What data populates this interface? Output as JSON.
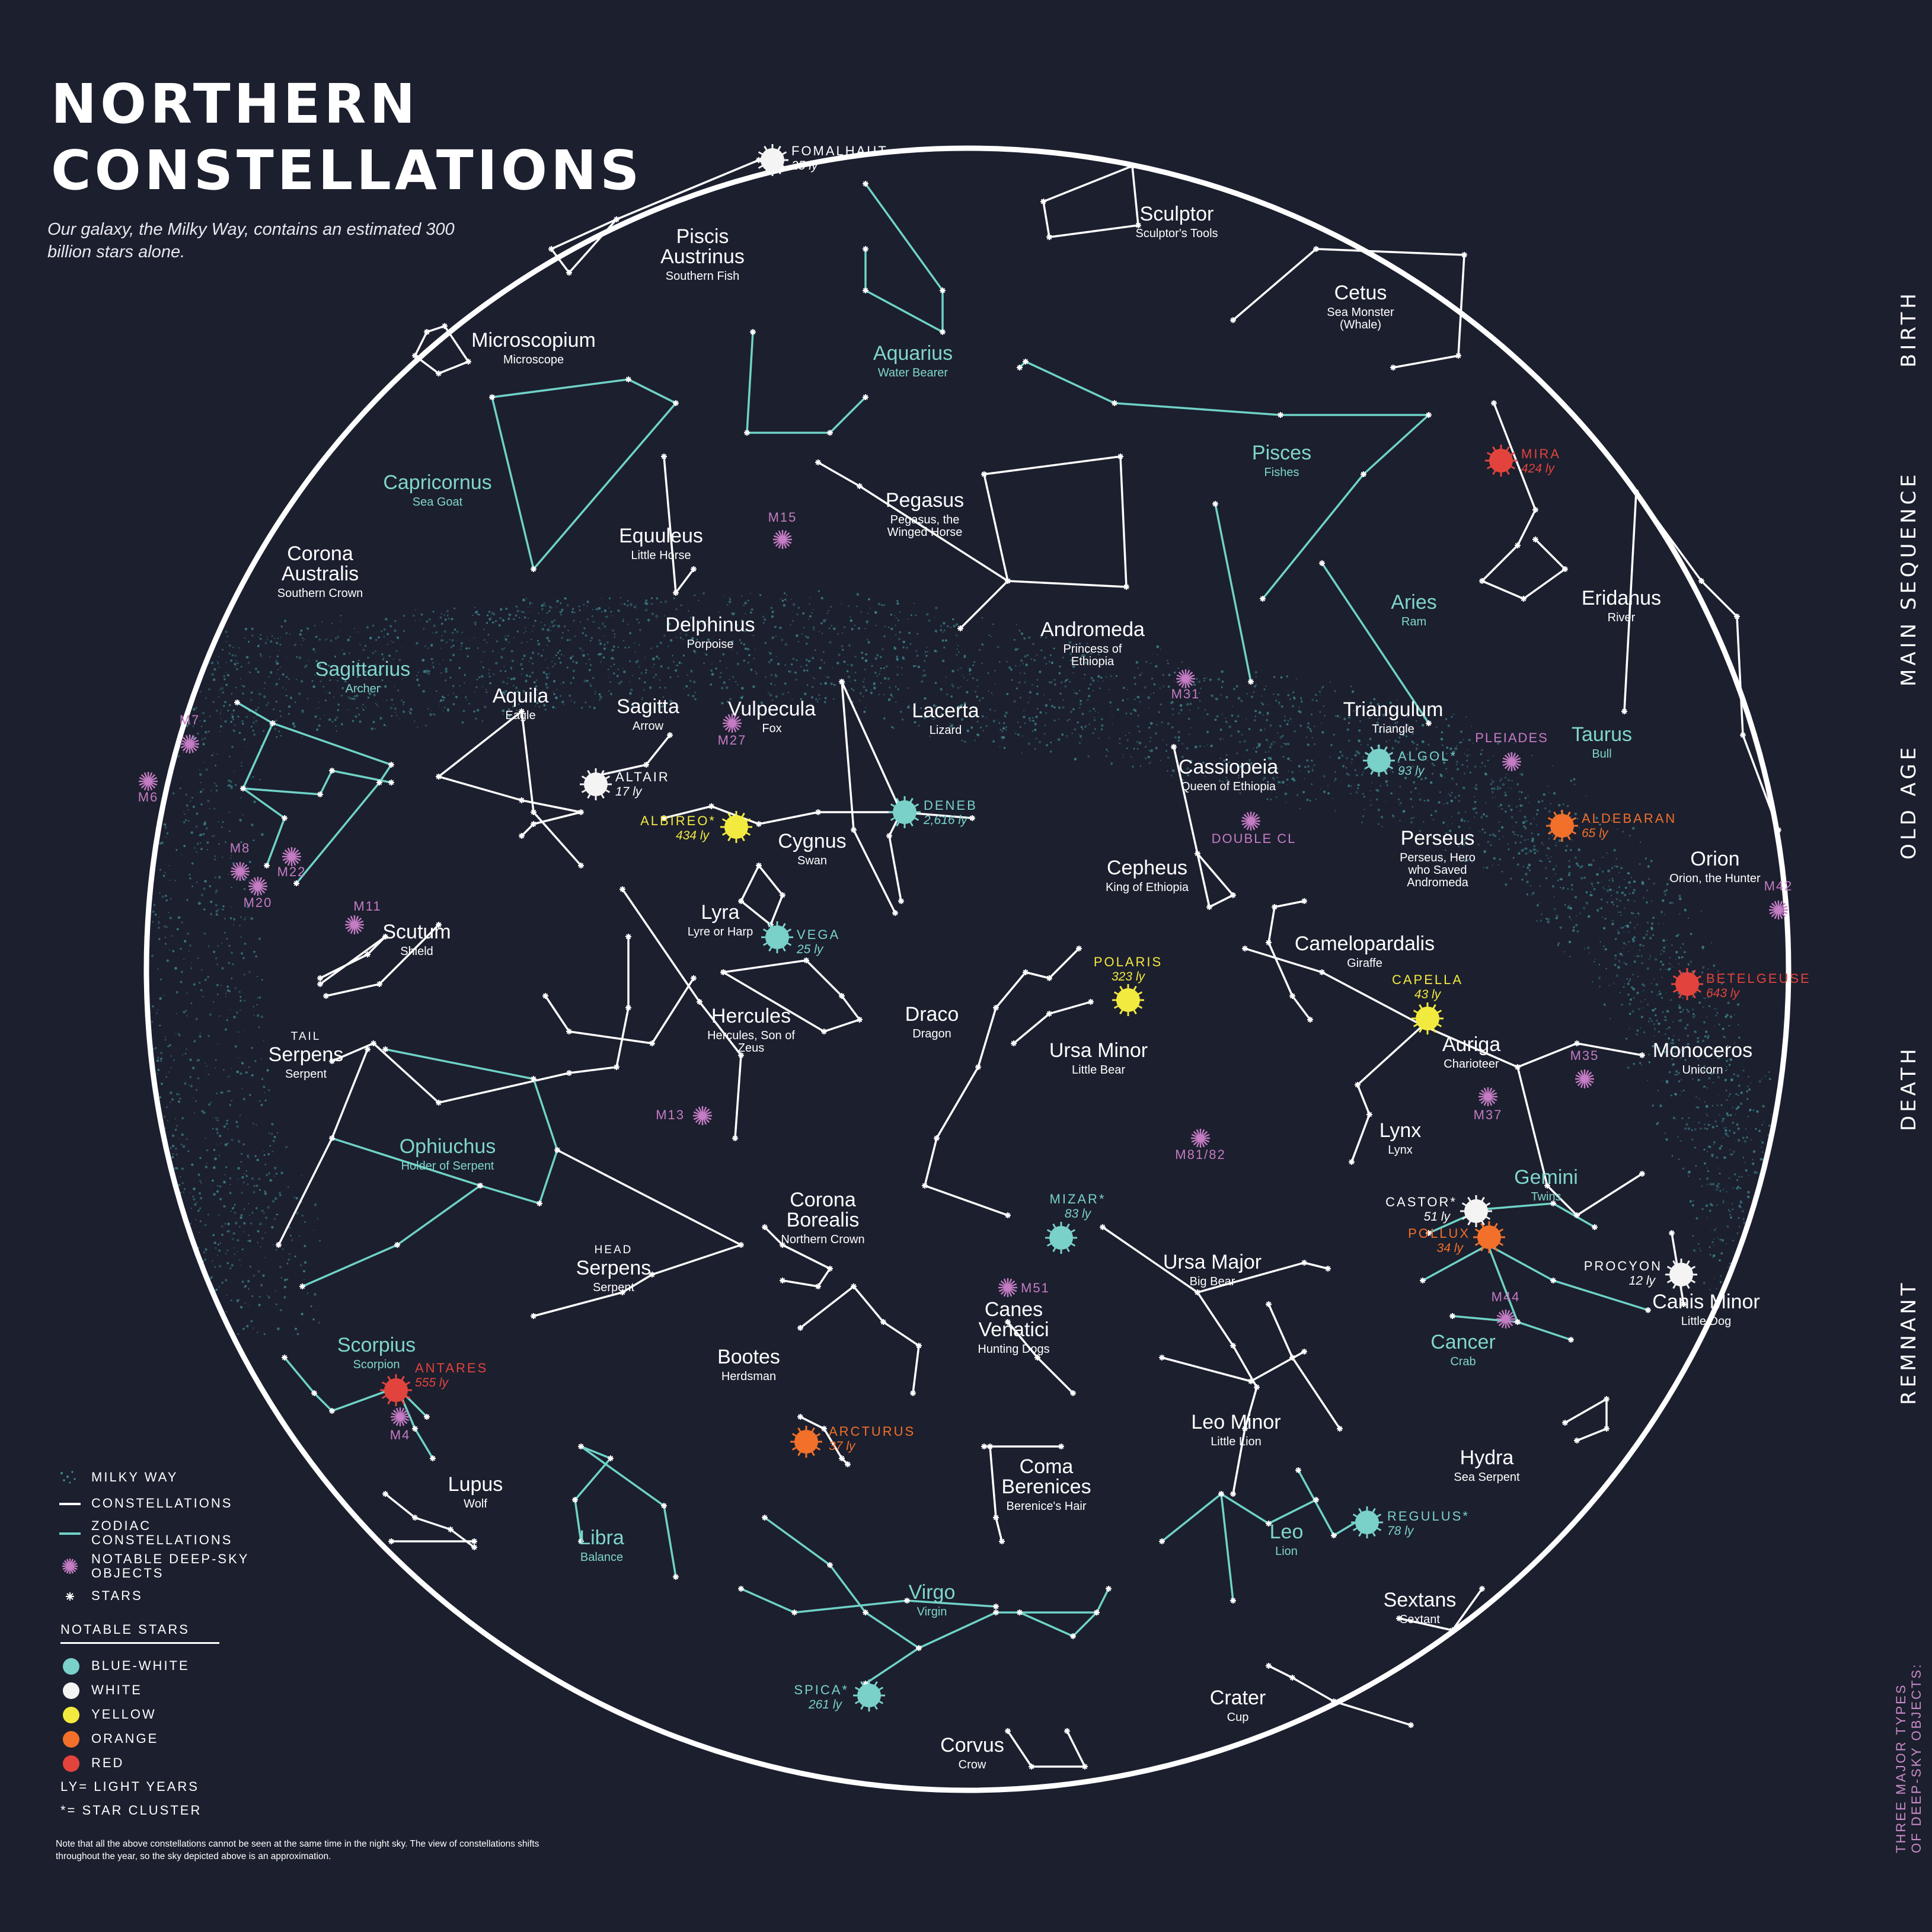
{
  "header": {
    "title_line1": "NORTHERN",
    "title_line2": "CONSTELLATIONS",
    "subtitle": "Our galaxy, the Milky Way, contains an estimated 300 billion stars alone."
  },
  "colors": {
    "background": "#1c1f2e",
    "constellation_line": "#ffffff",
    "zodiac_line": "#6fd3c7",
    "zodiac_label": "#7fd6cb",
    "deep_sky": "#c47cc4",
    "milky_way": "#3e8c92",
    "blue_white": "#79d1c9",
    "white": "#f4f4f4",
    "yellow": "#f3ea3f",
    "orange": "#f2702a",
    "red": "#e2443d"
  },
  "side_labels": [
    "BIRTH",
    "MAIN SEQUENCE",
    "OLD AGE",
    "DEATH",
    "REMNANT"
  ],
  "side_note": [
    "THREE MAJOR TYPES",
    "OF DEEP-SKY OBJECTS:"
  ],
  "constellations": [
    {
      "name": "Piscis Austrinus",
      "sub": "Southern Fish",
      "zodiac": false
    },
    {
      "name": "Sculptor",
      "sub": "Sculptor's Tools",
      "zodiac": false
    },
    {
      "name": "Cetus",
      "sub": "Sea Monster (Whale)",
      "zodiac": false
    },
    {
      "name": "Microscopium",
      "sub": "Microscope",
      "zodiac": false
    },
    {
      "name": "Aquarius",
      "sub": "Water Bearer",
      "zodiac": true
    },
    {
      "name": "Pisces",
      "sub": "Fishes",
      "zodiac": true
    },
    {
      "name": "Capricornus",
      "sub": "Sea Goat",
      "zodiac": true
    },
    {
      "name": "Pegasus",
      "sub": "Pegasus, the Winged Horse",
      "zodiac": false
    },
    {
      "name": "Equuleus",
      "sub": "Little Horse",
      "zodiac": false
    },
    {
      "name": "Corona Australis",
      "sub": "Southern Crown",
      "zodiac": false
    },
    {
      "name": "Eridanus",
      "sub": "River",
      "zodiac": false
    },
    {
      "name": "Aries",
      "sub": "Ram",
      "zodiac": true
    },
    {
      "name": "Delphinus",
      "sub": "Porpoise",
      "zodiac": false
    },
    {
      "name": "Andromeda",
      "sub": "Princess of Ethiopia",
      "zodiac": false
    },
    {
      "name": "Sagittarius",
      "sub": "Archer",
      "zodiac": true
    },
    {
      "name": "Aquila",
      "sub": "Eagle",
      "zodiac": false
    },
    {
      "name": "Sagitta",
      "sub": "Arrow",
      "zodiac": false
    },
    {
      "name": "Vulpecula",
      "sub": "Fox",
      "zodiac": false
    },
    {
      "name": "Lacerta",
      "sub": "Lizard",
      "zodiac": false
    },
    {
      "name": "Triangulum",
      "sub": "Triangle",
      "zodiac": false
    },
    {
      "name": "Taurus",
      "sub": "Bull",
      "zodiac": true
    },
    {
      "name": "Cassiopeia",
      "sub": "Queen of Ethiopia",
      "zodiac": false
    },
    {
      "name": "Cygnus",
      "sub": "Swan",
      "zodiac": false
    },
    {
      "name": "Perseus",
      "sub": "Perseus, Hero who Saved Andromeda",
      "zodiac": false
    },
    {
      "name": "Orion",
      "sub": "Orion, the Hunter",
      "zodiac": false
    },
    {
      "name": "Cepheus",
      "sub": "King of Ethiopia",
      "zodiac": false
    },
    {
      "name": "Lyra",
      "sub": "Lyre or Harp",
      "zodiac": false
    },
    {
      "name": "Scutum",
      "sub": "Shield",
      "zodiac": false
    },
    {
      "name": "Camelopardalis",
      "sub": "Giraffe",
      "zodiac": false
    },
    {
      "name": "Hercules",
      "sub": "Hercules, Son of Zeus",
      "zodiac": false
    },
    {
      "name": "Draco",
      "sub": "Dragon",
      "zodiac": false
    },
    {
      "name": "Ursa Minor",
      "sub": "Little Bear",
      "zodiac": false
    },
    {
      "name": "Auriga",
      "sub": "Charioteer",
      "zodiac": false
    },
    {
      "name": "Monoceros",
      "sub": "Unicorn",
      "zodiac": false
    },
    {
      "name": "Serpens",
      "sub": "Serpent",
      "zodiac": false,
      "pre": "TAIL"
    },
    {
      "name": "Ophiuchus",
      "sub": "Holder of Serpent",
      "zodiac": true
    },
    {
      "name": "Lynx",
      "sub": "Lynx",
      "zodiac": false
    },
    {
      "name": "Gemini",
      "sub": "Twins",
      "zodiac": true
    },
    {
      "name": "Corona Borealis",
      "sub": "Northern Crown",
      "zodiac": false
    },
    {
      "name": "Ursa Major",
      "sub": "Big Bear",
      "zodiac": false
    },
    {
      "name": "Serpens",
      "sub": "Serpent",
      "zodiac": false,
      "pre": "HEAD"
    },
    {
      "name": "Canes Venatici",
      "sub": "Hunting Dogs",
      "zodiac": false
    },
    {
      "name": "Canis Minor",
      "sub": "Little Dog",
      "zodiac": false
    },
    {
      "name": "Cancer",
      "sub": "Crab",
      "zodiac": true
    },
    {
      "name": "Scorpius",
      "sub": "Scorpion",
      "zodiac": true
    },
    {
      "name": "Bootes",
      "sub": "Herdsman",
      "zodiac": false
    },
    {
      "name": "Leo Minor",
      "sub": "Little Lion",
      "zodiac": false
    },
    {
      "name": "Hydra",
      "sub": "Sea Serpent",
      "zodiac": false
    },
    {
      "name": "Coma Berenices",
      "sub": "Berenice's Hair",
      "zodiac": false
    },
    {
      "name": "Lupus",
      "sub": "Wolf",
      "zodiac": false
    },
    {
      "name": "Libra",
      "sub": "Balance",
      "zodiac": true
    },
    {
      "name": "Leo",
      "sub": "Lion",
      "zodiac": true
    },
    {
      "name": "Virgo",
      "sub": "Virgin",
      "zodiac": true
    },
    {
      "name": "Sextans",
      "sub": "Sextant",
      "zodiac": false
    },
    {
      "name": "Crater",
      "sub": "Cup",
      "zodiac": false
    },
    {
      "name": "Corvus",
      "sub": "Crow",
      "zodiac": false
    }
  ],
  "notable_stars": [
    {
      "name": "FOMALHAUT",
      "dist": "25 ly",
      "type": "white"
    },
    {
      "name": "MIRA",
      "dist": "424 ly",
      "type": "red"
    },
    {
      "name": "ALTAIR",
      "dist": "17 ly",
      "type": "white"
    },
    {
      "name": "ALGOL*",
      "dist": "93 ly",
      "type": "blue_white"
    },
    {
      "name": "DENEB",
      "dist": "2,616 ly",
      "type": "blue_white"
    },
    {
      "name": "ALBIREO*",
      "dist": "434 ly",
      "type": "yellow"
    },
    {
      "name": "ALDEBARAN",
      "dist": "65 ly",
      "type": "orange"
    },
    {
      "name": "VEGA",
      "dist": "25 ly",
      "type": "blue_white"
    },
    {
      "name": "POLARIS",
      "dist": "323 ly",
      "type": "yellow"
    },
    {
      "name": "BETELGEUSE",
      "dist": "643 ly",
      "type": "red"
    },
    {
      "name": "CAPELLA",
      "dist": "43 ly",
      "type": "yellow"
    },
    {
      "name": "MIZAR*",
      "dist": "83 ly",
      "type": "blue_white"
    },
    {
      "name": "CASTOR*",
      "dist": "51 ly",
      "type": "white"
    },
    {
      "name": "POLLUX",
      "dist": "34 ly",
      "type": "orange"
    },
    {
      "name": "PROCYON",
      "dist": "12 ly",
      "type": "white"
    },
    {
      "name": "ANTARES",
      "dist": "555 ly",
      "type": "red"
    },
    {
      "name": "ARCTURUS",
      "dist": "37 ly",
      "type": "orange"
    },
    {
      "name": "REGULUS*",
      "dist": "78 ly",
      "type": "blue_white"
    },
    {
      "name": "SPICA*",
      "dist": "261 ly",
      "type": "blue_white"
    }
  ],
  "deep_sky_objects": [
    "M15",
    "M31",
    "M7",
    "M6",
    "M27",
    "PLEIADES",
    "M8",
    "M22",
    "M20",
    "DOUBLE CL",
    "M42",
    "M11",
    "M13",
    "M35",
    "M37",
    "M81/82",
    "M44",
    "M51",
    "M4"
  ],
  "legend": {
    "items": [
      "MILKY WAY",
      "CONSTELLATIONS",
      "ZODIAC\nCONSTELLATIONS",
      "NOTABLE DEEP-SKY\nOBJECTS",
      "STARS"
    ],
    "notable_header": "NOTABLE STARS",
    "notable_items": [
      "BLUE-WHITE",
      "WHITE",
      "YELLOW",
      "ORANGE",
      "RED"
    ],
    "ly_note": "LY= LIGHT YEARS",
    "cluster_note": "*= STAR CLUSTER"
  },
  "footnote": "Note that all the above constellations cannot be seen at the same time in the night sky. The view of constellations shifts throughout the year, so the sky depicted above is an approximation."
}
